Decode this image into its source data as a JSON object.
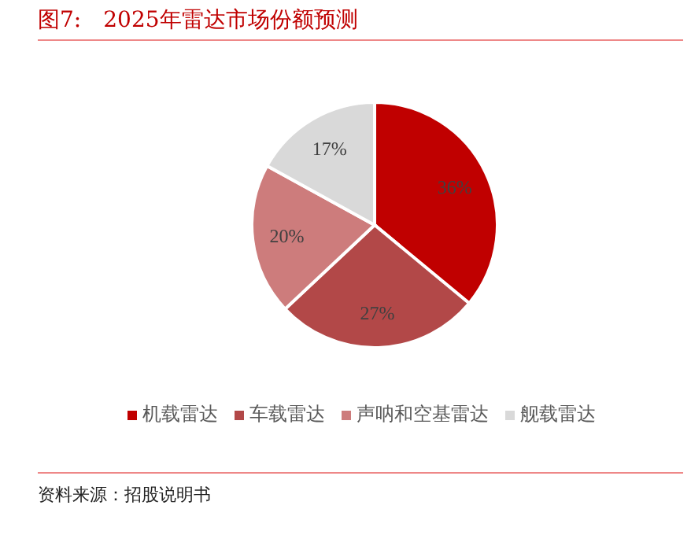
{
  "chart_data": {
    "type": "pie",
    "title": "图7:　2025年雷达市场份额预测",
    "categories": [
      "机载雷达",
      "车载雷达",
      "声呐和空基雷达",
      "舰载雷达"
    ],
    "values": [
      36,
      27,
      20,
      17
    ],
    "value_labels": [
      "36%",
      "27%",
      "20%",
      "17%"
    ],
    "colors": [
      "#c00000",
      "#b24848",
      "#cd7c7c",
      "#d9d9d9"
    ],
    "legend": "bottom",
    "annotations": [
      "资料来源：招股说明书"
    ]
  }
}
